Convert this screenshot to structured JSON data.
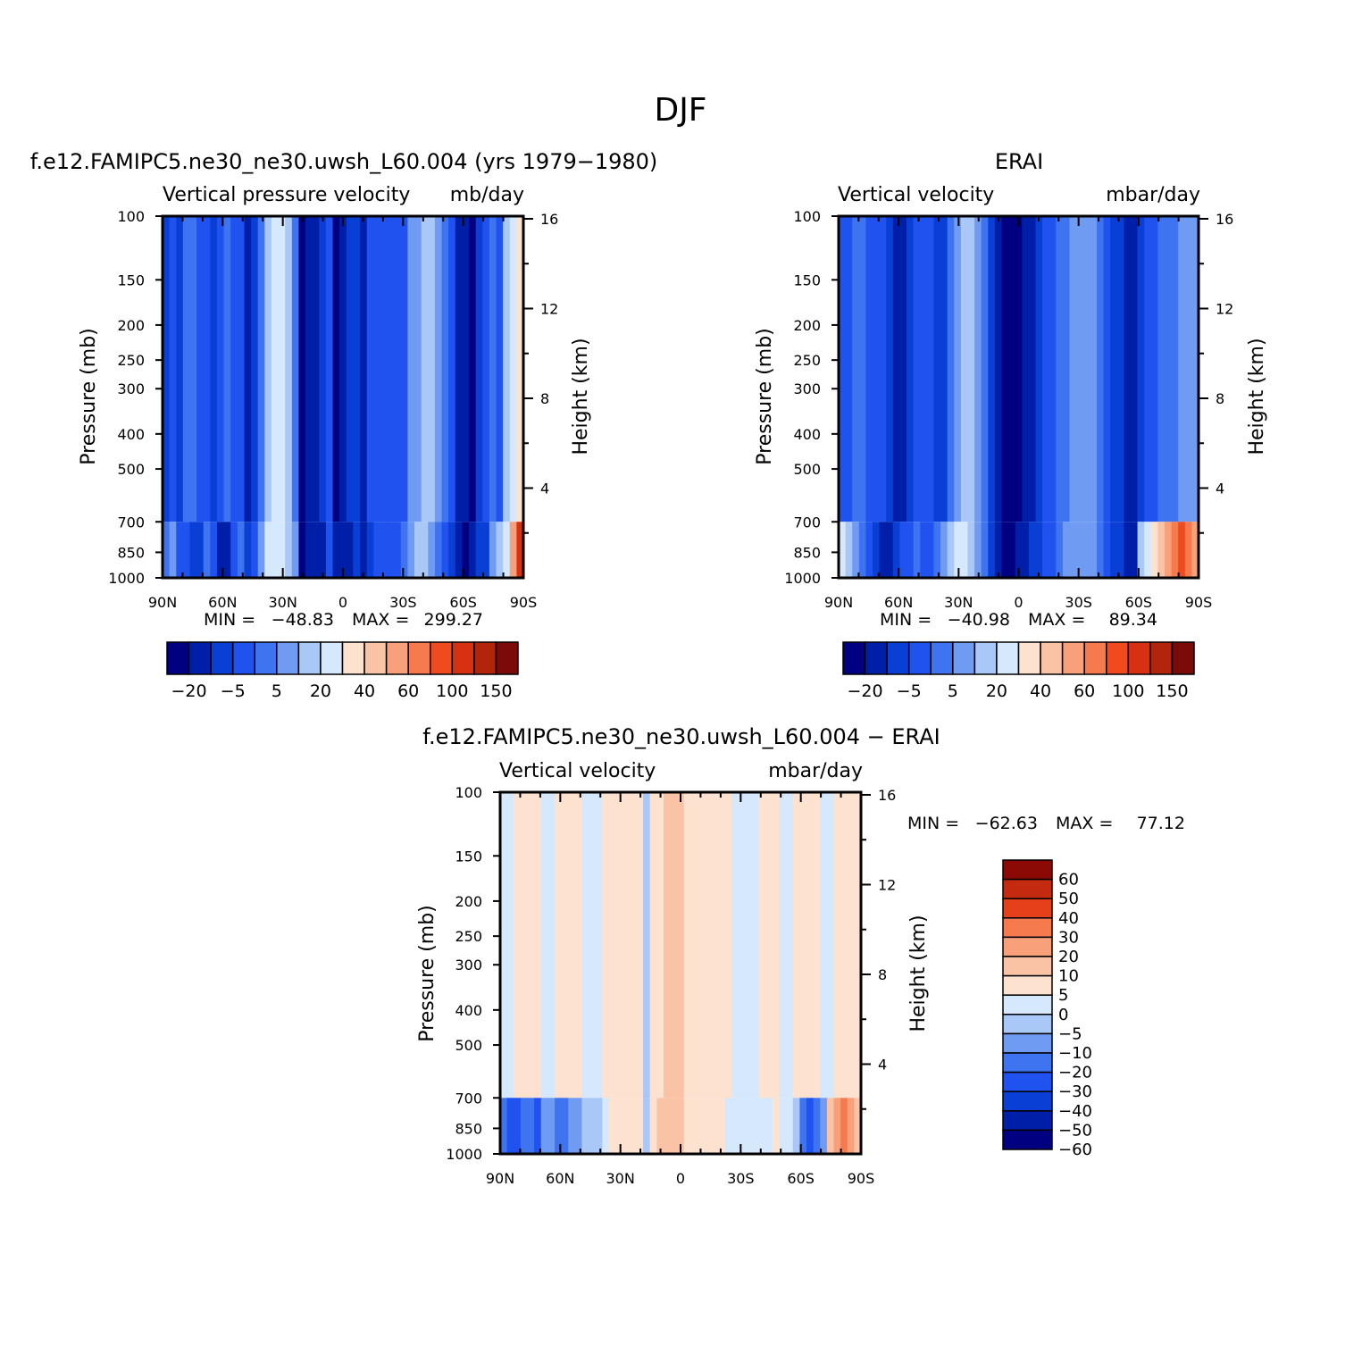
{
  "figure": {
    "main_title": "DJF"
  },
  "colors": {
    "model_obs_scale": [
      "#000080",
      "#001fa8",
      "#0a3fd6",
      "#1f52ef",
      "#3f74f0",
      "#6f9cf2",
      "#a9c8f7",
      "#d6e8fb",
      "#fde2cf",
      "#fbc3a5",
      "#f8a07a",
      "#f57a4e",
      "#f04a1f",
      "#d63212",
      "#b2240c",
      "#7c0a08"
    ],
    "diff_scale": [
      "#000080",
      "#001fa8",
      "#0a3fd6",
      "#1f52ef",
      "#3f74f0",
      "#6f9cf2",
      "#a9c8f7",
      "#d6e8fb",
      "#fde2cf",
      "#fbc3a5",
      "#f8a07a",
      "#f57a4e",
      "#e4401a",
      "#c42a10",
      "#8b0a06"
    ]
  },
  "chart_data": [
    {
      "type": "heatmap",
      "title": "f.e12.FAMIPC5.ne30_ne30.uwsh_L60.004 (yrs 1979-1980)",
      "subtitle_left": "Vertical pressure velocity",
      "subtitle_right": "mb/day",
      "ylabel": "Pressure (mb)",
      "ylabel_right": "Height (km)",
      "x_ticks": [
        "90N",
        "60N",
        "30N",
        "0",
        "30S",
        "60S",
        "90S"
      ],
      "y_ticks": [
        "100",
        "150",
        "200",
        "250",
        "300",
        "400",
        "500",
        "700",
        "850",
        "1000"
      ],
      "y_right_ticks": [
        "16",
        "12",
        "8",
        "4"
      ],
      "y_scale": "log pressure",
      "stats": {
        "min_label": "MIN =",
        "min": "-48.83",
        "max_label": "MAX =",
        "max": "299.27"
      },
      "colorbar_labels": [
        "-20",
        "-5",
        "5",
        "20",
        "40",
        "60",
        "100",
        "150"
      ],
      "column_levels": [
        2,
        3,
        2,
        4,
        4,
        3,
        3,
        2,
        3,
        4,
        3,
        3,
        1,
        2,
        4,
        6,
        7,
        7,
        6,
        4,
        0,
        1,
        1,
        2,
        3,
        0,
        1,
        2,
        2,
        1,
        3,
        3,
        3,
        3,
        3,
        3,
        5,
        5,
        6,
        6,
        5,
        4,
        3,
        1,
        1,
        0,
        2,
        3,
        4,
        3,
        6,
        7,
        8
      ],
      "near_surface_levels": [
        4,
        5,
        3,
        3,
        2,
        2,
        4,
        3,
        1,
        1,
        3,
        4,
        2,
        3,
        5,
        7,
        7,
        7,
        6,
        5,
        0,
        1,
        1,
        1,
        3,
        1,
        1,
        1,
        2,
        1,
        2,
        3,
        3,
        3,
        3,
        4,
        5,
        6,
        6,
        5,
        4,
        3,
        2,
        1,
        0,
        1,
        2,
        2,
        5,
        6,
        7,
        10,
        13
      ]
    },
    {
      "type": "heatmap",
      "title": "ERAI",
      "subtitle_left": "Vertical velocity",
      "subtitle_right": "mbar/day",
      "ylabel": "Pressure (mb)",
      "ylabel_right": "Height (km)",
      "x_ticks": [
        "90N",
        "60N",
        "30N",
        "0",
        "30S",
        "60S",
        "90S"
      ],
      "y_ticks": [
        "100",
        "150",
        "200",
        "250",
        "300",
        "400",
        "500",
        "700",
        "850",
        "1000"
      ],
      "y_right_ticks": [
        "16",
        "12",
        "8",
        "4"
      ],
      "y_scale": "log pressure",
      "stats": {
        "min_label": "MIN =",
        "min": "-40.98",
        "max_label": "MAX =",
        "max": "89.34"
      },
      "colorbar_labels": [
        "-20",
        "-5",
        "5",
        "20",
        "40",
        "60",
        "100",
        "150"
      ],
      "column_levels": [
        3,
        3,
        4,
        4,
        3,
        3,
        3,
        2,
        1,
        1,
        2,
        3,
        3,
        3,
        2,
        2,
        4,
        5,
        6,
        6,
        5,
        4,
        2,
        1,
        0,
        0,
        0,
        1,
        1,
        2,
        3,
        3,
        4,
        4,
        5,
        5,
        5,
        5,
        4,
        3,
        2,
        2,
        1,
        1,
        2,
        3,
        3,
        4,
        4,
        4,
        5,
        5,
        5
      ],
      "near_surface_levels": [
        7,
        6,
        5,
        4,
        3,
        2,
        1,
        1,
        2,
        3,
        3,
        4,
        3,
        3,
        4,
        5,
        6,
        7,
        7,
        6,
        5,
        4,
        2,
        1,
        0,
        0,
        1,
        1,
        2,
        2,
        3,
        3,
        4,
        5,
        5,
        5,
        5,
        5,
        4,
        3,
        2,
        2,
        1,
        1,
        6,
        7,
        8,
        9,
        10,
        11,
        12,
        11,
        10
      ]
    },
    {
      "type": "heatmap",
      "title": "f.e12.FAMIPC5.ne30_ne30.uwsh_L60.004 - ERAI",
      "subtitle_left": "Vertical velocity",
      "subtitle_right": "mbar/day",
      "ylabel": "Pressure (mb)",
      "ylabel_right": "Height (km)",
      "x_ticks": [
        "90N",
        "60N",
        "30N",
        "0",
        "30S",
        "60S",
        "90S"
      ],
      "y_ticks": [
        "100",
        "150",
        "200",
        "250",
        "300",
        "400",
        "500",
        "700",
        "850",
        "1000"
      ],
      "y_right_ticks": [
        "16",
        "12",
        "8",
        "4"
      ],
      "y_scale": "log pressure",
      "stats": {
        "min_label": "MIN =",
        "min": "-62.63",
        "max_label": "MAX =",
        "max": "77.12"
      },
      "colorbar_labels": [
        "60",
        "50",
        "40",
        "30",
        "20",
        "10",
        "5",
        "0",
        "-5",
        "-10",
        "-20",
        "-30",
        "-40",
        "-50",
        "-60"
      ],
      "column_levels": [
        7,
        7,
        8,
        8,
        8,
        8,
        7,
        7,
        8,
        8,
        8,
        8,
        7,
        7,
        7,
        8,
        8,
        8,
        8,
        8,
        8,
        6,
        8,
        8,
        9,
        9,
        9,
        8,
        8,
        8,
        8,
        8,
        8,
        8,
        7,
        7,
        7,
        7,
        8,
        8,
        8,
        7,
        7,
        8,
        8,
        8,
        8,
        7,
        7,
        8,
        8,
        8,
        8
      ],
      "near_surface_levels": [
        4,
        3,
        3,
        4,
        4,
        3,
        5,
        5,
        4,
        4,
        5,
        5,
        6,
        6,
        6,
        7,
        8,
        8,
        8,
        8,
        8,
        6,
        8,
        9,
        9,
        9,
        9,
        8,
        8,
        8,
        8,
        8,
        8,
        7,
        7,
        7,
        7,
        7,
        7,
        7,
        8,
        7,
        7,
        6,
        4,
        3,
        4,
        5,
        9,
        10,
        11,
        10,
        9
      ]
    }
  ]
}
